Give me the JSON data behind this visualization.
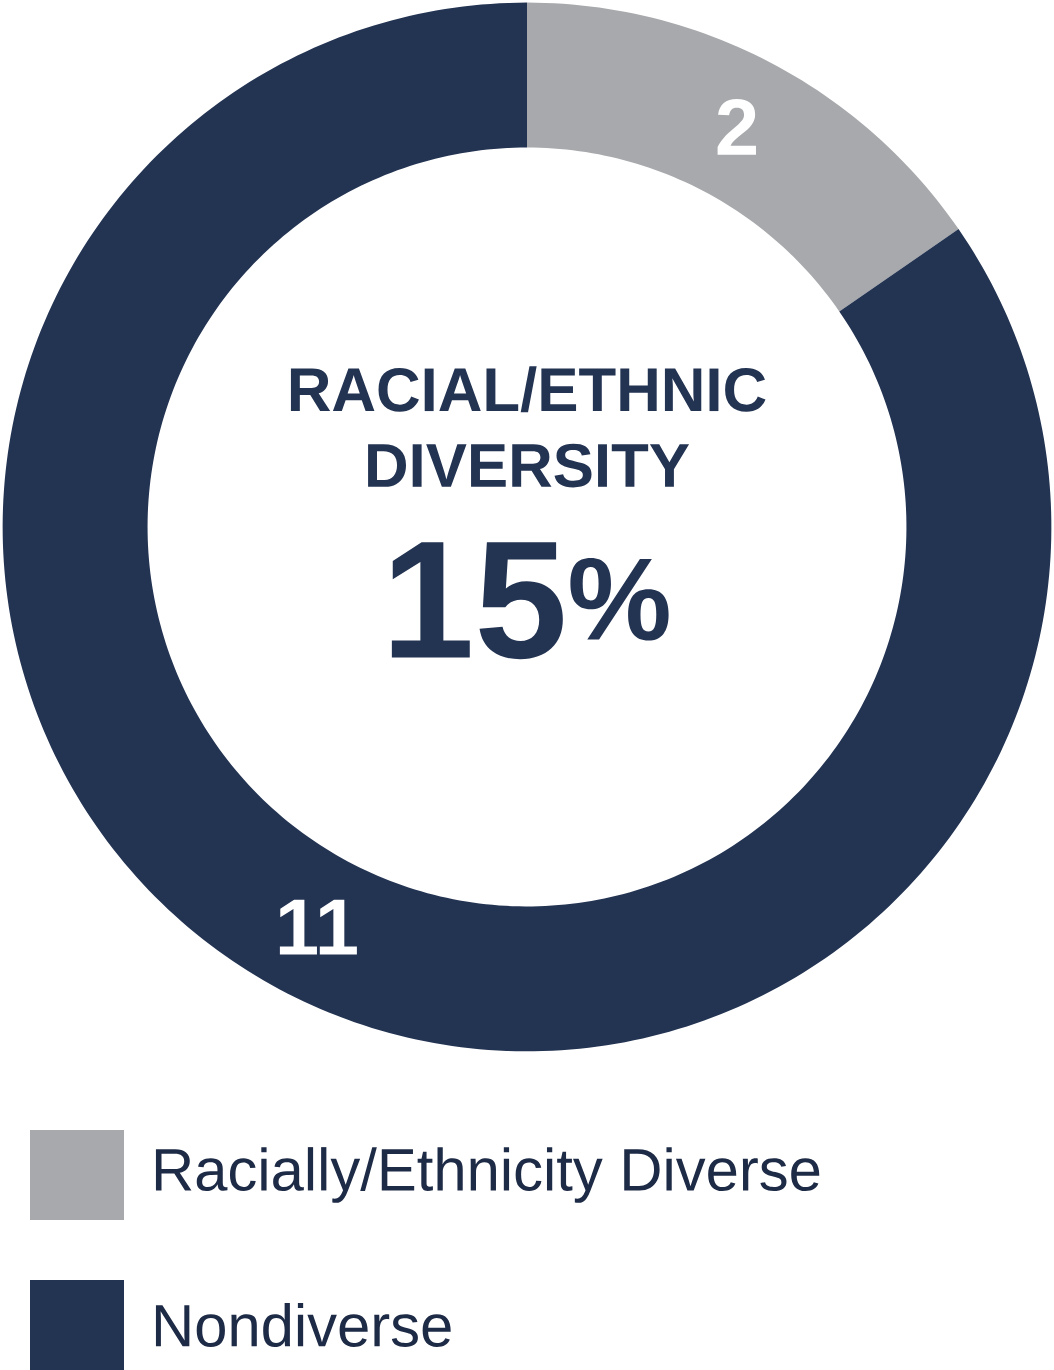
{
  "chart_data": {
    "type": "donut",
    "title": "RACIAL/ETHNIC DIVERSITY",
    "annotations": [
      "15$^{%}$"
    ],
    "categories": [
      "Racially/Ethnicity Diverse",
      "Nondiverse"
    ],
    "values": [
      2,
      11
    ],
    "colors": [
      "#a7a9ac",
      "#233352"
    ],
    "data_labels": true,
    "legend": "bottom"
  }
}
